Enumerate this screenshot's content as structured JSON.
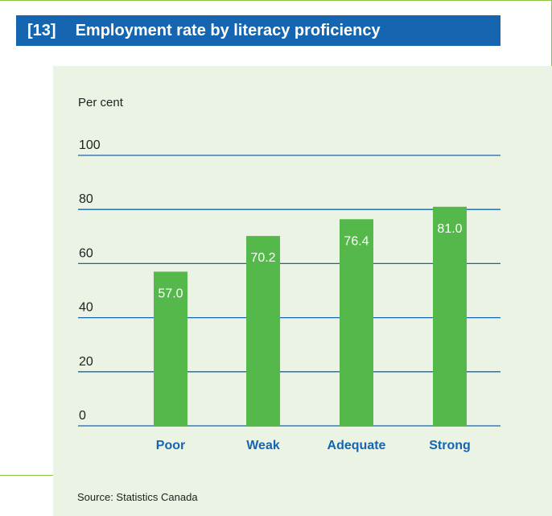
{
  "header": {
    "number": "[13]",
    "title": "Employment rate by literacy proficiency"
  },
  "source": "Source: Statistics Canada",
  "colors": {
    "title_bar": "#1565b0",
    "frame": "#8dc63f",
    "panel": "#ebf3e4",
    "bar": "#55b84a",
    "gridline": "#1565b0",
    "category_label": "#1565b0"
  },
  "chart_data": {
    "type": "bar",
    "title": "Employment rate by literacy proficiency",
    "ylabel": "Per cent",
    "xlabel": "",
    "categories": [
      "Poor",
      "Weak",
      "Adequate",
      "Strong"
    ],
    "values": [
      57.0,
      70.2,
      76.4,
      81.0
    ],
    "value_labels": [
      "57.0",
      "70.2",
      "76.4",
      "81.0"
    ],
    "yticks": [
      0,
      20,
      40,
      60,
      80,
      100
    ],
    "ylim": [
      0,
      100
    ],
    "grid": true,
    "legend": "none"
  }
}
